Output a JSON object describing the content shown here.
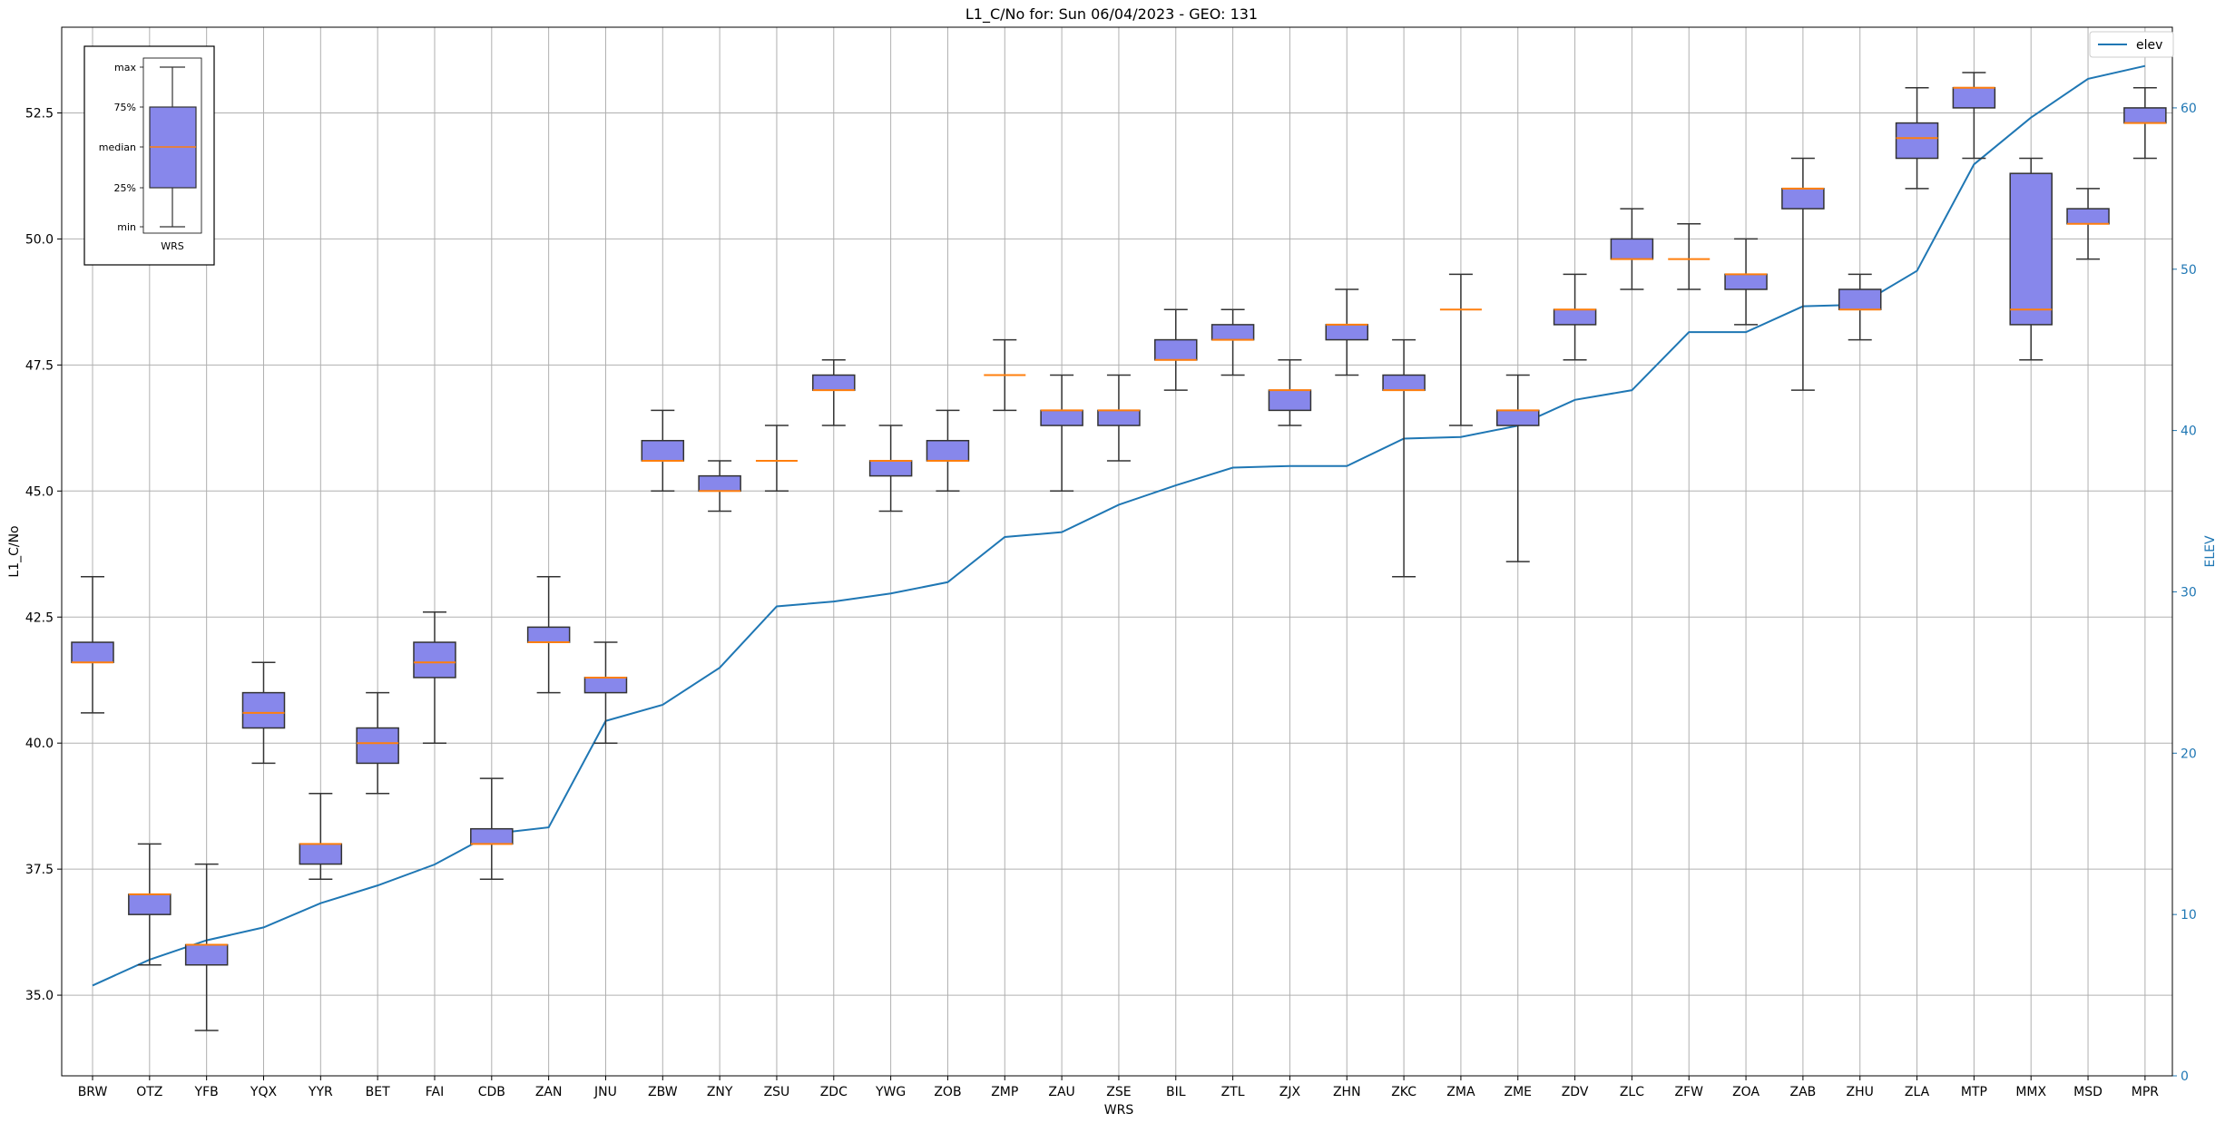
{
  "chart_data": {
    "type": "boxplot",
    "title": "L1_C/No for: Sun 06/04/2023 - GEO: 131",
    "xlabel": "WRS",
    "ylabel": "L1_C/No",
    "y2label": "ELEV",
    "ylim": [
      33.4,
      54.2
    ],
    "y2lim": [
      0,
      65
    ],
    "yticks": [
      "35.0",
      "37.5",
      "40.0",
      "42.5",
      "45.0",
      "47.5",
      "50.0",
      "52.5"
    ],
    "y2ticks": [
      "0",
      "10",
      "20",
      "30",
      "40",
      "50",
      "60"
    ],
    "grid": true,
    "legend": {
      "position": "top-right",
      "label": "elev"
    },
    "colors": {
      "box_fill": "#8787eb",
      "box_edge": "#333333",
      "median": "#ff7f0e",
      "elev_line": "#1f77b4",
      "grid": "#b0b0b0"
    },
    "categories": [
      "BRW",
      "OTZ",
      "YFB",
      "YQX",
      "YYR",
      "BET",
      "FAI",
      "CDB",
      "ZAN",
      "JNU",
      "ZBW",
      "ZNY",
      "ZSU",
      "ZDC",
      "YWG",
      "ZOB",
      "ZMP",
      "ZAU",
      "ZSE",
      "BIL",
      "ZTL",
      "ZJX",
      "ZHN",
      "ZKC",
      "ZMA",
      "ZME",
      "ZDV",
      "ZLC",
      "ZFW",
      "ZOA",
      "ZAB",
      "ZHU",
      "ZLA",
      "MTP",
      "MMX",
      "MSD",
      "MPR"
    ],
    "boxes": [
      {
        "min": 40.6,
        "q1": 41.6,
        "median": 41.6,
        "q3": 42.0,
        "max": 43.3
      },
      {
        "min": 35.6,
        "q1": 36.6,
        "median": 37.0,
        "q3": 37.0,
        "max": 38.0
      },
      {
        "min": 34.3,
        "q1": 35.6,
        "median": 36.0,
        "q3": 36.0,
        "max": 37.6
      },
      {
        "min": 39.6,
        "q1": 40.3,
        "median": 40.6,
        "q3": 41.0,
        "max": 41.6
      },
      {
        "min": 37.3,
        "q1": 37.6,
        "median": 38.0,
        "q3": 38.0,
        "max": 39.0
      },
      {
        "min": 39.0,
        "q1": 39.6,
        "median": 40.0,
        "q3": 40.3,
        "max": 41.0
      },
      {
        "min": 40.0,
        "q1": 41.3,
        "median": 41.6,
        "q3": 42.0,
        "max": 42.6
      },
      {
        "min": 37.3,
        "q1": 38.0,
        "median": 38.0,
        "q3": 38.3,
        "max": 39.3
      },
      {
        "min": 41.0,
        "q1": 42.0,
        "median": 42.0,
        "q3": 42.3,
        "max": 43.3
      },
      {
        "min": 40.0,
        "q1": 41.0,
        "median": 41.3,
        "q3": 41.3,
        "max": 42.0
      },
      {
        "min": 45.0,
        "q1": 45.6,
        "median": 45.6,
        "q3": 46.0,
        "max": 46.6
      },
      {
        "min": 44.6,
        "q1": 45.0,
        "median": 45.0,
        "q3": 45.3,
        "max": 45.6
      },
      {
        "min": 45.0,
        "q1": 45.6,
        "median": 45.6,
        "q3": 45.6,
        "max": 46.3
      },
      {
        "min": 46.3,
        "q1": 47.0,
        "median": 47.0,
        "q3": 47.3,
        "max": 47.6
      },
      {
        "min": 44.6,
        "q1": 45.3,
        "median": 45.6,
        "q3": 45.6,
        "max": 46.3
      },
      {
        "min": 45.0,
        "q1": 45.6,
        "median": 45.6,
        "q3": 46.0,
        "max": 46.6
      },
      {
        "min": 46.6,
        "q1": 47.3,
        "median": 47.3,
        "q3": 47.3,
        "max": 48.0
      },
      {
        "min": 45.0,
        "q1": 46.3,
        "median": 46.6,
        "q3": 46.6,
        "max": 47.3
      },
      {
        "min": 45.6,
        "q1": 46.3,
        "median": 46.6,
        "q3": 46.6,
        "max": 47.3
      },
      {
        "min": 47.0,
        "q1": 47.6,
        "median": 47.6,
        "q3": 48.0,
        "max": 48.6
      },
      {
        "min": 47.3,
        "q1": 48.0,
        "median": 48.0,
        "q3": 48.3,
        "max": 48.6
      },
      {
        "min": 46.3,
        "q1": 46.6,
        "median": 47.0,
        "q3": 47.0,
        "max": 47.6
      },
      {
        "min": 47.3,
        "q1": 48.0,
        "median": 48.3,
        "q3": 48.3,
        "max": 49.0
      },
      {
        "min": 43.3,
        "q1": 47.0,
        "median": 47.0,
        "q3": 47.3,
        "max": 48.0
      },
      {
        "min": 46.3,
        "q1": 48.6,
        "median": 48.6,
        "q3": 48.6,
        "max": 49.3
      },
      {
        "min": 43.6,
        "q1": 46.3,
        "median": 46.6,
        "q3": 46.6,
        "max": 47.3
      },
      {
        "min": 47.6,
        "q1": 48.3,
        "median": 48.6,
        "q3": 48.6,
        "max": 49.3
      },
      {
        "min": 49.0,
        "q1": 49.6,
        "median": 49.6,
        "q3": 50.0,
        "max": 50.6
      },
      {
        "min": 49.0,
        "q1": 49.6,
        "median": 49.6,
        "q3": 49.6,
        "max": 50.3
      },
      {
        "min": 48.3,
        "q1": 49.0,
        "median": 49.3,
        "q3": 49.3,
        "max": 50.0
      },
      {
        "min": 47.0,
        "q1": 50.6,
        "median": 51.0,
        "q3": 51.0,
        "max": 51.6
      },
      {
        "min": 48.0,
        "q1": 48.6,
        "median": 48.6,
        "q3": 49.0,
        "max": 49.3
      },
      {
        "min": 51.0,
        "q1": 51.6,
        "median": 52.0,
        "q3": 52.3,
        "max": 53.0
      },
      {
        "min": 51.6,
        "q1": 52.6,
        "median": 53.0,
        "q3": 53.0,
        "max": 53.3
      },
      {
        "min": 47.6,
        "q1": 48.3,
        "median": 48.6,
        "q3": 51.3,
        "max": 51.6
      },
      {
        "min": 49.6,
        "q1": 50.3,
        "median": 50.3,
        "q3": 50.6,
        "max": 51.0
      },
      {
        "min": 51.6,
        "q1": 52.3,
        "median": 52.3,
        "q3": 52.6,
        "max": 53.0
      }
    ],
    "series": [
      {
        "name": "elev",
        "axis": "right",
        "values": [
          5.6,
          7.2,
          8.4,
          9.2,
          10.7,
          11.8,
          13.1,
          15.0,
          15.4,
          22.0,
          23.0,
          25.3,
          29.1,
          29.4,
          29.9,
          30.6,
          33.4,
          33.7,
          35.4,
          36.6,
          37.7,
          37.8,
          37.8,
          39.5,
          39.6,
          40.3,
          41.9,
          42.5,
          46.1,
          46.1,
          47.7,
          47.8,
          49.9,
          56.5,
          59.4,
          61.8,
          62.6
        ]
      }
    ],
    "inset_legend": {
      "labels": [
        "max",
        "75%",
        "median",
        "25%",
        "min"
      ],
      "xlabel": "WRS"
    }
  }
}
